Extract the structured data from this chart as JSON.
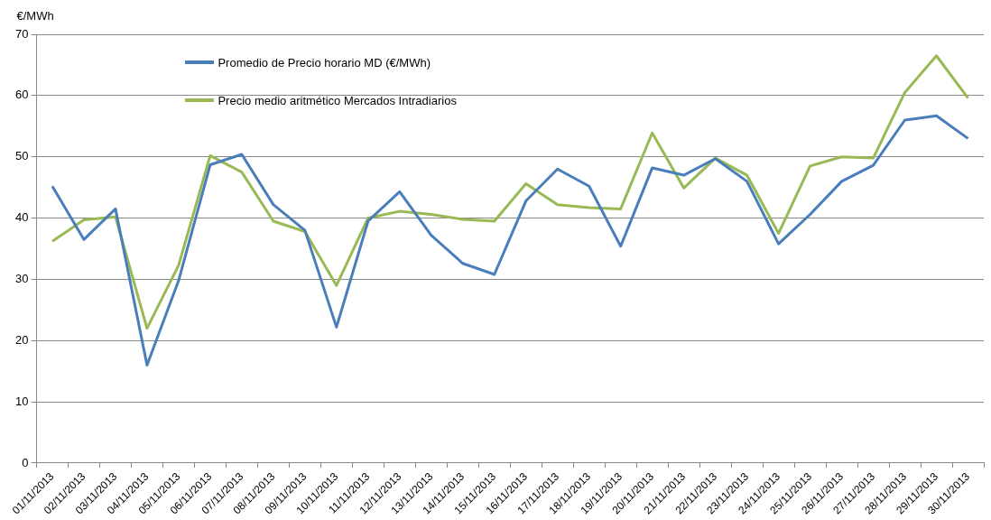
{
  "chart_data": {
    "type": "line",
    "ylabel": "€/MWh",
    "categories": [
      "01/11/2013",
      "02/11/2013",
      "03/11/2013",
      "04/11/2013",
      "05/11/2013",
      "06/11/2013",
      "07/11/2013",
      "08/11/2013",
      "09/11/2013",
      "10/11/2013",
      "11/11/2013",
      "12/11/2013",
      "13/11/2013",
      "14/11/2013",
      "15/11/2013",
      "16/11/2013",
      "17/11/2013",
      "18/11/2013",
      "19/11/2013",
      "20/11/2013",
      "21/11/2013",
      "22/11/2013",
      "23/11/2013",
      "24/11/2013",
      "25/11/2013",
      "26/11/2013",
      "27/11/2013",
      "28/11/2013",
      "29/11/2013",
      "30/11/2013"
    ],
    "series": [
      {
        "name": "Promedio de Precio horario MD (€/MWh)",
        "color": "#4a7ebb",
        "values": [
          45.2,
          36.5,
          41.5,
          16,
          29.8,
          48.7,
          50.4,
          42.2,
          38,
          22.2,
          39.5,
          44.3,
          37.2,
          32.6,
          30.8,
          42.8,
          48,
          45.2,
          35.4,
          48.2,
          47,
          49.7,
          46,
          35.8,
          40.6,
          46,
          48.6,
          56,
          56.7,
          53
        ]
      },
      {
        "name": "Precio medio aritmético  Mercados Intradiarios",
        "color": "#98b954",
        "values": [
          36.2,
          39.7,
          40.2,
          22,
          32.3,
          50.2,
          47.5,
          39.5,
          37.8,
          29,
          40,
          41.1,
          40.6,
          39.8,
          39.5,
          45.6,
          42.2,
          41.7,
          41.5,
          53.9,
          44.9,
          49.8,
          47,
          37.5,
          48.5,
          50,
          49.8,
          60.5,
          66.5,
          59.6
        ]
      }
    ],
    "ylim": [
      0,
      70
    ],
    "yticks": [
      0,
      10,
      20,
      30,
      40,
      50,
      60,
      70
    ],
    "grid": "y",
    "legend": "top left",
    "marker": "none",
    "line_style": "solid"
  }
}
